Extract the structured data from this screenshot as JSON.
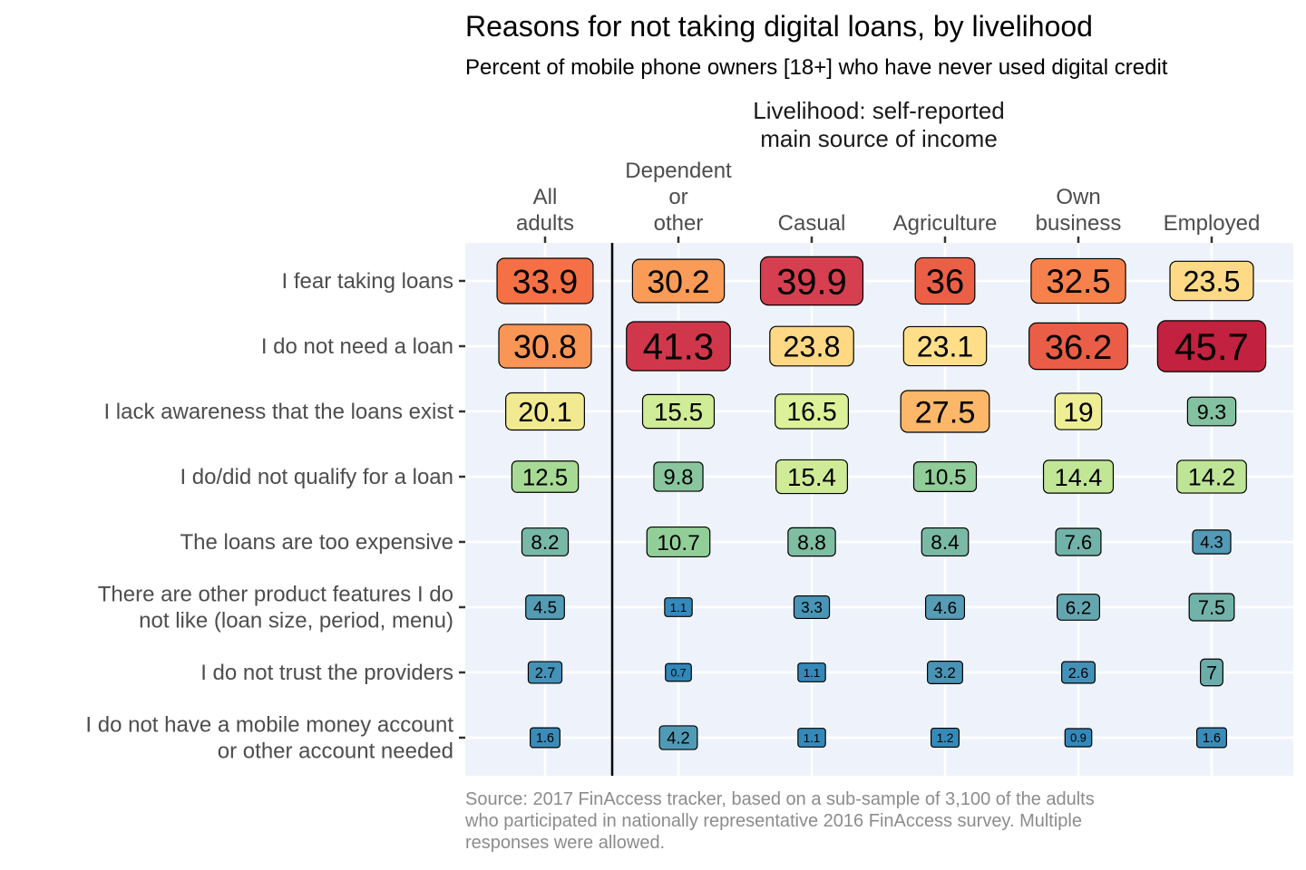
{
  "chart_data": {
    "type": "table",
    "title": "Reasons for not taking digital loans, by livelihood",
    "subtitle": "Percent of mobile phone owners [18+] who have never used digital credit",
    "facet_title_lines": [
      "Livelihood: self-reported",
      "main source of income"
    ],
    "columns": [
      {
        "key": "all",
        "label_lines": [
          "All",
          "adults"
        ]
      },
      {
        "key": "dependent",
        "label_lines": [
          "Dependent",
          "or",
          "other"
        ]
      },
      {
        "key": "casual",
        "label_lines": [
          "Casual"
        ]
      },
      {
        "key": "agriculture",
        "label_lines": [
          "Agriculture"
        ]
      },
      {
        "key": "own_business",
        "label_lines": [
          "Own",
          "business"
        ]
      },
      {
        "key": "employed",
        "label_lines": [
          "Employed"
        ]
      }
    ],
    "rows": [
      {
        "label_lines": [
          "I fear taking loans"
        ],
        "values": [
          33.9,
          30.2,
          39.9,
          36,
          32.5,
          23.5
        ]
      },
      {
        "label_lines": [
          "I do not need a loan"
        ],
        "values": [
          30.8,
          41.3,
          23.8,
          23.1,
          36.2,
          45.7
        ]
      },
      {
        "label_lines": [
          "I lack awareness that the loans exist"
        ],
        "values": [
          20.1,
          15.5,
          16.5,
          27.5,
          19,
          9.3
        ]
      },
      {
        "label_lines": [
          "I do/did not qualify for a loan"
        ],
        "values": [
          12.5,
          9.8,
          15.4,
          10.5,
          14.4,
          14.2
        ]
      },
      {
        "label_lines": [
          "The loans are too expensive"
        ],
        "values": [
          8.2,
          10.7,
          8.8,
          8.4,
          7.6,
          4.3
        ]
      },
      {
        "label_lines": [
          "There are other product features I do",
          "not like (loan size, period, menu)"
        ],
        "values": [
          4.5,
          1.1,
          3.3,
          4.6,
          6.2,
          7.5
        ]
      },
      {
        "label_lines": [
          "I do not trust the providers"
        ],
        "values": [
          2.7,
          0.7,
          1.1,
          3.2,
          2.6,
          7
        ]
      },
      {
        "label_lines": [
          "I do not have a mobile money account",
          "or other account needed"
        ],
        "values": [
          1.6,
          4.2,
          1.1,
          1.2,
          0.9,
          1.6
        ]
      }
    ],
    "color_scale": {
      "name": "Spectral (reversed)",
      "stops": [
        "#2b83ba",
        "#5fa2b3",
        "#99d594",
        "#e6f598",
        "#fee08b",
        "#fdae61",
        "#f46d43",
        "#d53e4f",
        "#c2213f"
      ]
    },
    "panel_background": "#eef3fb",
    "grid_color": "#ffffff",
    "divider_after_column": "all",
    "caption_lines": [
      "Source: 2017 FinAccess tracker, based on a sub-sample of 3,100 of the adults",
      "who participated in nationally representative 2016 FinAccess survey. Multiple",
      "responses were allowed."
    ]
  }
}
